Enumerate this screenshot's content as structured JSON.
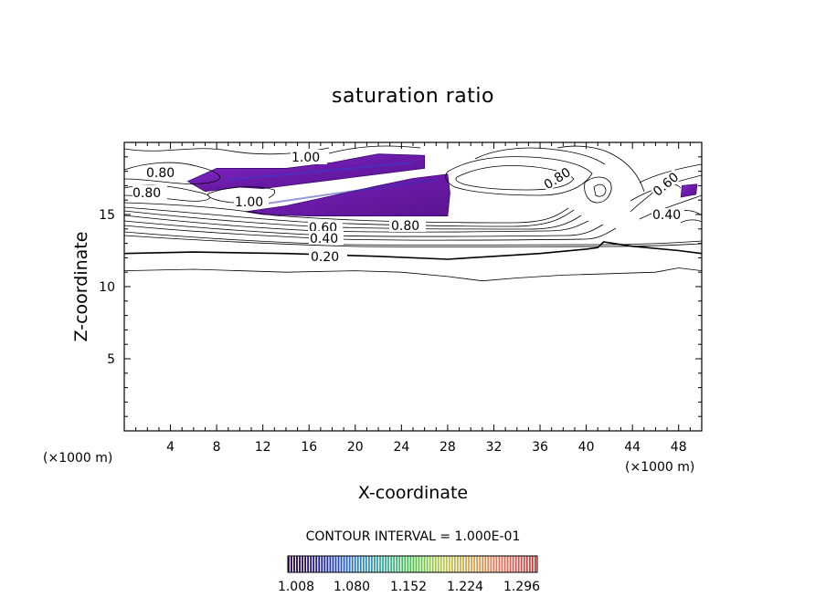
{
  "chart_data": {
    "type": "contour",
    "title": "saturation ratio",
    "xlabel": "X-coordinate",
    "ylabel": "Z-coordinate",
    "x_unit": "(×1000 m)",
    "y_unit": "(×1000 m)",
    "xlim": [
      0,
      50
    ],
    "ylim": [
      0,
      20
    ],
    "x_ticks": [
      4,
      8,
      12,
      16,
      20,
      24,
      28,
      32,
      36,
      40,
      44,
      48
    ],
    "y_ticks": [
      5,
      10,
      15
    ],
    "contour_interval_text": "CONTOUR INTERVAL = 1.000E-01",
    "contour_labels": [
      "1.00",
      "0.80",
      "0.60",
      "0.40",
      "0.20"
    ],
    "colorbar": {
      "ticks": [
        "1.008",
        "1.080",
        "1.152",
        "1.224",
        "1.296"
      ],
      "colors": [
        "#2a0050",
        "#1a1a9a",
        "#2b6bd6",
        "#2fb0a0",
        "#47c247",
        "#b9c84a",
        "#e0a04a",
        "#e06a5a",
        "#c83a3a"
      ]
    },
    "series": [
      {
        "name": "",
        "level": 0.2,
        "x": [
          0,
          6,
          14,
          22,
          28,
          32,
          36,
          40,
          41,
          41.5,
          44,
          48,
          50
        ],
        "y": [
          12.3,
          12.4,
          12.3,
          12.1,
          11.9,
          12.1,
          12.3,
          12.6,
          12.7,
          13.1,
          12.8,
          12.5,
          12.3
        ]
      },
      {
        "name": "",
        "level": 0.1,
        "x": [
          0,
          6,
          14,
          20,
          24,
          28,
          31,
          34,
          38,
          42,
          46,
          48,
          50
        ],
        "y": [
          11.1,
          11.2,
          11.0,
          11.1,
          11.0,
          10.7,
          10.4,
          10.6,
          10.8,
          10.9,
          11.0,
          11.3,
          11.1
        ]
      }
    ],
    "supersaturated_regions": [
      {
        "x": [
          5.5,
          8,
          14,
          18,
          22,
          26,
          26,
          22,
          18,
          14,
          12,
          10,
          9,
          7,
          5.5
        ],
        "y": [
          17.3,
          18.2,
          18.2,
          18.6,
          19.2,
          19.1,
          18.2,
          17.8,
          17.4,
          17.0,
          16.8,
          16.9,
          16.8,
          16.6,
          17.3
        ]
      },
      {
        "x": [
          10.5,
          14,
          18,
          22,
          25,
          28,
          28.2,
          28,
          24,
          20,
          16,
          12,
          10.5
        ],
        "y": [
          15.2,
          15.6,
          16.3,
          17.0,
          17.5,
          17.8,
          16.5,
          14.9,
          14.9,
          14.9,
          14.9,
          15.0,
          15.2
        ]
      },
      {
        "x": [
          48.2,
          49.5,
          49.6,
          48.3
        ],
        "y": [
          16.2,
          16.4,
          17.1,
          17.0
        ]
      }
    ]
  }
}
